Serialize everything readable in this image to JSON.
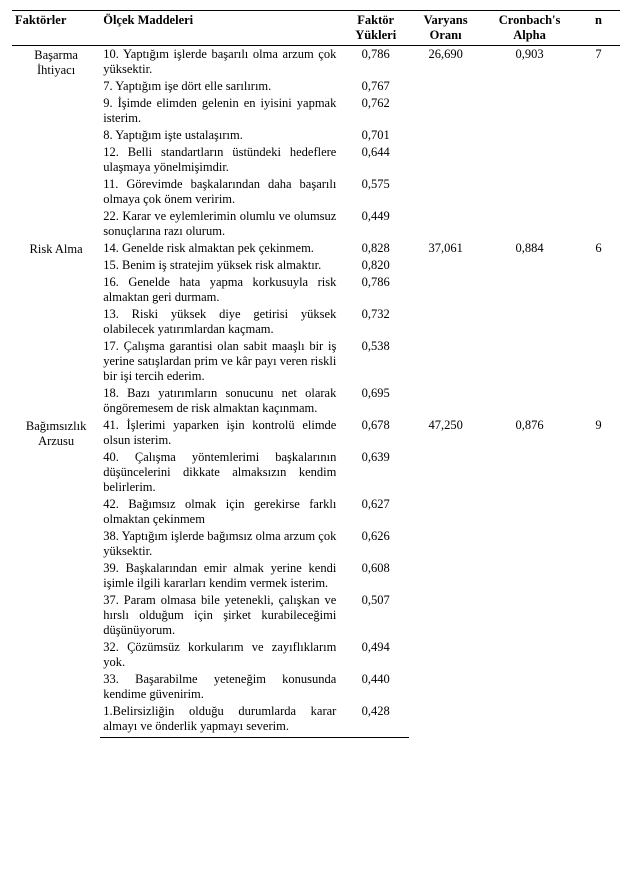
{
  "headers": {
    "factor": "Faktörler",
    "items": "Ölçek Maddeleri",
    "loading_l1": "Faktör",
    "loading_l2": "Yükleri",
    "variance_l1": "Varyans",
    "variance_l2": "Oranı",
    "alpha_l1": "Cronbach's",
    "alpha_l2": "Alpha",
    "n": "n"
  },
  "factors": [
    {
      "name_l1": "Başarma",
      "name_l2": "İhtiyacı",
      "variance": "26,690",
      "alpha": "0,903",
      "n": "7",
      "items": [
        {
          "text": "10. Yaptığım işlerde başarılı olma arzum çok yüksektir.",
          "load": "0,786"
        },
        {
          "text": "7. Yaptığım işe dört elle sarılırım.",
          "load": "0,767"
        },
        {
          "text": "9. İşimde elimden gelenin en iyisini yapmak isterim.",
          "load": "0,762"
        },
        {
          "text": "8. Yaptığım işte ustalaşırım.",
          "load": "0,701"
        },
        {
          "text": "12. Belli standartların üstündeki hedeflere ulaşmaya yönelmişimdir.",
          "load": "0,644"
        },
        {
          "text": "11. Görevimde başkalarından daha başarılı olmaya çok önem veririm.",
          "load": "0,575"
        },
        {
          "text": "22. Karar ve eylemlerimin olumlu ve olumsuz sonuçlarına razı olurum.",
          "load": "0,449"
        }
      ]
    },
    {
      "name_l1": "Risk Alma",
      "name_l2": "",
      "variance": "37,061",
      "alpha": "0,884",
      "n": "6",
      "items": [
        {
          "text": "14. Genelde risk almaktan pek çekinmem.",
          "load": "0,828"
        },
        {
          "text": "15. Benim iş stratejim yüksek risk almaktır.",
          "load": "0,820"
        },
        {
          "text": "16. Genelde hata yapma korkusuyla risk almaktan geri durmam.",
          "load": "0,786"
        },
        {
          "text": "13. Riski yüksek diye getirisi yüksek olabilecek yatırımlardan kaçmam.",
          "load": "0,732"
        },
        {
          "text": "17. Çalışma garantisi olan sabit maaşlı bir iş yerine satışlardan prim ve kâr payı veren riskli bir işi tercih ederim.",
          "load": "0,538"
        },
        {
          "text": "18. Bazı yatırımların sonucunu net olarak öngöremesem de risk almaktan kaçınmam.",
          "load": "0,695"
        }
      ]
    },
    {
      "name_l1": "Bağımsızlık",
      "name_l2": "Arzusu",
      "variance": "47,250",
      "alpha": "0,876",
      "n": "9",
      "items": [
        {
          "text": "41. İşlerimi yaparken işin kontrolü elimde olsun isterim.",
          "load": "0,678"
        },
        {
          "text": "40. Çalışma yöntemlerimi başkalarının düşüncelerini dikkate almaksızın kendim belirlerim.",
          "load": "0,639"
        },
        {
          "text": "42. Bağımsız olmak için gerekirse farklı olmaktan çekinmem",
          "load": "0,627"
        },
        {
          "text": "38. Yaptığım işlerde bağımsız olma arzum çok yüksektir.",
          "load": "0,626"
        },
        {
          "text": "39. Başkalarından emir almak yerine kendi işimle ilgili kararları kendim vermek isterim.",
          "load": "0,608"
        },
        {
          "text": "37. Param olmasa bile yetenekli, çalışkan ve hırslı olduğum için şirket kurabileceğimi düşünüyorum.",
          "load": "0,507"
        },
        {
          "text": "32. Çözümsüz korkularım ve zayıflıklarım yok.",
          "load": "0,494"
        },
        {
          "text": "33. Başarabilme yeteneğim konusunda kendime güvenirim.",
          "load": "0,440"
        },
        {
          "text": "1.Belirsizliğin olduğu durumlarda karar almayı ve önderlik yapmayı severim.",
          "load": "0,428"
        }
      ]
    }
  ]
}
